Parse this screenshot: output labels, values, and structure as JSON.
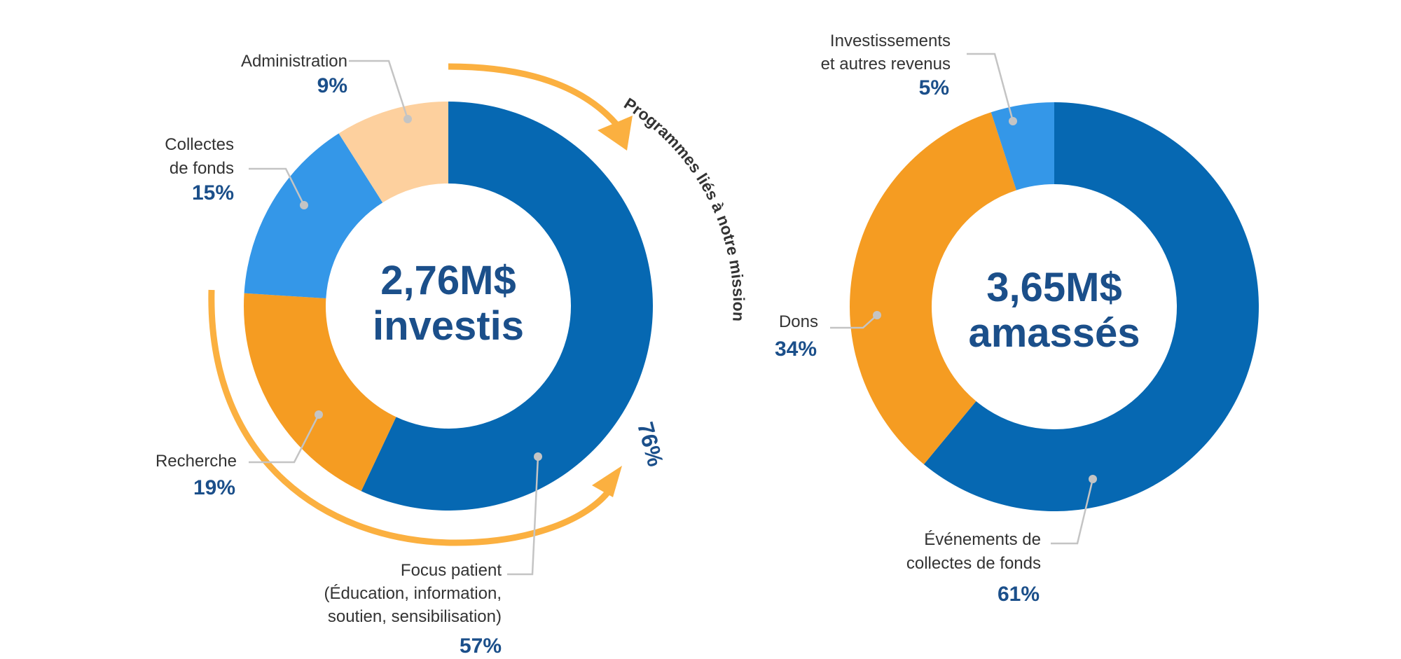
{
  "colors": {
    "dark_blue": "#0668b2",
    "light_blue": "#3497e8",
    "orange": "#f59c22",
    "peach": "#fdd09e",
    "arrow": "#fbb040",
    "text_blue": "#1b4f8a"
  },
  "chart_data": [
    {
      "type": "pie",
      "donut": true,
      "center_label": [
        "2,76M$",
        "investis"
      ],
      "slices": [
        {
          "label": [
            "Focus patient",
            "(Éducation, information,",
            "soutien, sensibilisation)"
          ],
          "value": 57,
          "value_label": "57%",
          "color": "#0668b2"
        },
        {
          "label": [
            "Recherche"
          ],
          "value": 19,
          "value_label": "19%",
          "color": "#f59c22"
        },
        {
          "label": [
            "Collectes",
            "de fonds"
          ],
          "value": 15,
          "value_label": "15%",
          "color": "#3497e8"
        },
        {
          "label": [
            "Administration"
          ],
          "value": 9,
          "value_label": "9%",
          "color": "#fdd09e"
        }
      ],
      "annotation": {
        "text": "Programmes liés à notre mission",
        "value": 76,
        "value_label": "76%"
      }
    },
    {
      "type": "pie",
      "donut": true,
      "center_label": [
        "3,65M$",
        "amassés"
      ],
      "slices": [
        {
          "label": [
            "Événements de",
            "collectes de fonds"
          ],
          "value": 61,
          "value_label": "61%",
          "color": "#0668b2"
        },
        {
          "label": [
            "Dons"
          ],
          "value": 34,
          "value_label": "34%",
          "color": "#f59c22"
        },
        {
          "label": [
            "Investissements",
            "et autres revenus"
          ],
          "value": 5,
          "value_label": "5%",
          "color": "#3497e8"
        }
      ]
    }
  ]
}
